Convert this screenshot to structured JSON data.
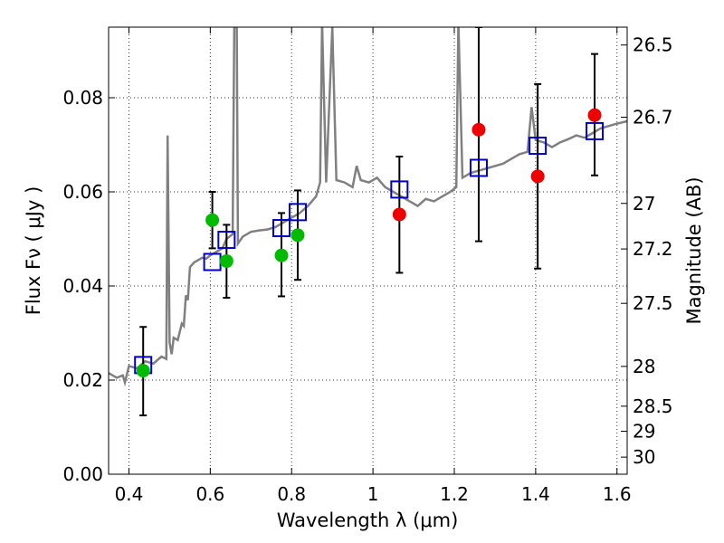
{
  "chart_data": {
    "type": "scatter",
    "xlabel": "Wavelength  λ (μm)",
    "ylabel": "Flux  Fν  ( μJy )",
    "y2label": "Magnitude (AB)",
    "xlim": [
      0.35,
      1.625
    ],
    "ylim": [
      0.0,
      0.095
    ],
    "grid": true,
    "x_ticks": [
      0.4,
      0.6,
      0.8,
      1.0,
      1.2,
      1.4,
      1.6
    ],
    "x_tick_labels": [
      "0.4",
      "0.6",
      "0.8",
      "1",
      "1.2",
      "1.4",
      "1.6"
    ],
    "y_ticks": [
      0.0,
      0.02,
      0.04,
      0.06,
      0.08
    ],
    "y_tick_labels": [
      "0.00",
      "0.02",
      "0.04",
      "0.06",
      "0.08"
    ],
    "y2_ticks": [
      "26.5",
      "26.7",
      "27",
      "27.2",
      "27.5",
      "28",
      "28.5",
      "29",
      "30"
    ],
    "colors": {
      "spectrum": "#808080",
      "model_box": "#0000cc",
      "green": "#00bb00",
      "red": "#ee0000",
      "errorbar": "#000000",
      "grid": "#333333"
    },
    "spectrum": [
      [
        0.35,
        0.0215
      ],
      [
        0.37,
        0.0205
      ],
      [
        0.385,
        0.021
      ],
      [
        0.39,
        0.0195
      ],
      [
        0.4,
        0.023
      ],
      [
        0.42,
        0.0225
      ],
      [
        0.44,
        0.024
      ],
      [
        0.46,
        0.0235
      ],
      [
        0.48,
        0.025
      ],
      [
        0.492,
        0.0245
      ],
      [
        0.495,
        0.072
      ],
      [
        0.5,
        0.028
      ],
      [
        0.505,
        0.0255
      ],
      [
        0.51,
        0.029
      ],
      [
        0.52,
        0.0285
      ],
      [
        0.53,
        0.032
      ],
      [
        0.535,
        0.0315
      ],
      [
        0.54,
        0.038
      ],
      [
        0.545,
        0.037
      ],
      [
        0.55,
        0.044
      ],
      [
        0.56,
        0.045
      ],
      [
        0.57,
        0.0455
      ],
      [
        0.58,
        0.046
      ],
      [
        0.59,
        0.0458
      ],
      [
        0.6,
        0.0465
      ],
      [
        0.61,
        0.047
      ],
      [
        0.62,
        0.0475
      ],
      [
        0.63,
        0.048
      ],
      [
        0.64,
        0.05
      ],
      [
        0.655,
        0.051
      ],
      [
        0.659,
        0.096
      ],
      [
        0.665,
        0.096
      ],
      [
        0.668,
        0.049
      ],
      [
        0.68,
        0.0505
      ],
      [
        0.7,
        0.0515
      ],
      [
        0.72,
        0.0518
      ],
      [
        0.74,
        0.052
      ],
      [
        0.76,
        0.0525
      ],
      [
        0.78,
        0.0535
      ],
      [
        0.8,
        0.0545
      ],
      [
        0.82,
        0.0555
      ],
      [
        0.84,
        0.057
      ],
      [
        0.86,
        0.059
      ],
      [
        0.87,
        0.062
      ],
      [
        0.875,
        0.096
      ],
      [
        0.885,
        0.062
      ],
      [
        0.9,
        0.095
      ],
      [
        0.91,
        0.0625
      ],
      [
        0.93,
        0.062
      ],
      [
        0.95,
        0.061
      ],
      [
        0.96,
        0.0655
      ],
      [
        0.97,
        0.0625
      ],
      [
        0.99,
        0.062
      ],
      [
        1.01,
        0.063
      ],
      [
        1.03,
        0.061
      ],
      [
        1.05,
        0.06
      ],
      [
        1.07,
        0.059
      ],
      [
        1.09,
        0.058
      ],
      [
        1.11,
        0.057
      ],
      [
        1.13,
        0.0585
      ],
      [
        1.15,
        0.058
      ],
      [
        1.17,
        0.059
      ],
      [
        1.19,
        0.06
      ],
      [
        1.205,
        0.061
      ],
      [
        1.21,
        0.096
      ],
      [
        1.22,
        0.063
      ],
      [
        1.24,
        0.064
      ],
      [
        1.26,
        0.0645
      ],
      [
        1.28,
        0.065
      ],
      [
        1.3,
        0.0655
      ],
      [
        1.32,
        0.066
      ],
      [
        1.34,
        0.067
      ],
      [
        1.36,
        0.068
      ],
      [
        1.38,
        0.0685
      ],
      [
        1.39,
        0.078
      ],
      [
        1.4,
        0.071
      ],
      [
        1.42,
        0.0705
      ],
      [
        1.44,
        0.0695
      ],
      [
        1.46,
        0.0705
      ],
      [
        1.48,
        0.0712
      ],
      [
        1.5,
        0.072
      ],
      [
        1.52,
        0.0715
      ],
      [
        1.54,
        0.0725
      ],
      [
        1.56,
        0.0735
      ],
      [
        1.58,
        0.074
      ],
      [
        1.6,
        0.0745
      ],
      [
        1.625,
        0.075
      ]
    ],
    "series": [
      {
        "marker": "open-square",
        "x": [
          0.435,
          0.605,
          0.64,
          0.775,
          0.815,
          1.065,
          1.26,
          1.405,
          1.545
        ],
        "y": [
          0.0232,
          0.0451,
          0.0498,
          0.0523,
          0.0557,
          0.0605,
          0.0651,
          0.0698,
          0.0729
        ]
      },
      {
        "marker": "filled-circle-green",
        "x": [
          0.435,
          0.605,
          0.64,
          0.775,
          0.815
        ],
        "y": [
          0.022,
          0.054,
          0.0453,
          0.0465,
          0.0508
        ]
      },
      {
        "marker": "filled-circle-red",
        "x": [
          1.065,
          1.26,
          1.405,
          1.545
        ],
        "y": [
          0.0552,
          0.0732,
          0.0633,
          0.0763
        ]
      }
    ],
    "errorbars": [
      {
        "x": 0.435,
        "lo": 0.0125,
        "hi": 0.0313
      },
      {
        "x": 0.605,
        "lo": 0.048,
        "hi": 0.06
      },
      {
        "x": 0.64,
        "lo": 0.0375,
        "hi": 0.053
      },
      {
        "x": 0.775,
        "lo": 0.0378,
        "hi": 0.0555
      },
      {
        "x": 0.815,
        "lo": 0.0413,
        "hi": 0.0603
      },
      {
        "x": 1.065,
        "lo": 0.0428,
        "hi": 0.0675
      },
      {
        "x": 1.26,
        "lo": 0.0495,
        "hi": 0.095
      },
      {
        "x": 1.405,
        "lo": 0.0437,
        "hi": 0.0829
      },
      {
        "x": 1.545,
        "lo": 0.0635,
        "hi": 0.0893
      }
    ]
  }
}
